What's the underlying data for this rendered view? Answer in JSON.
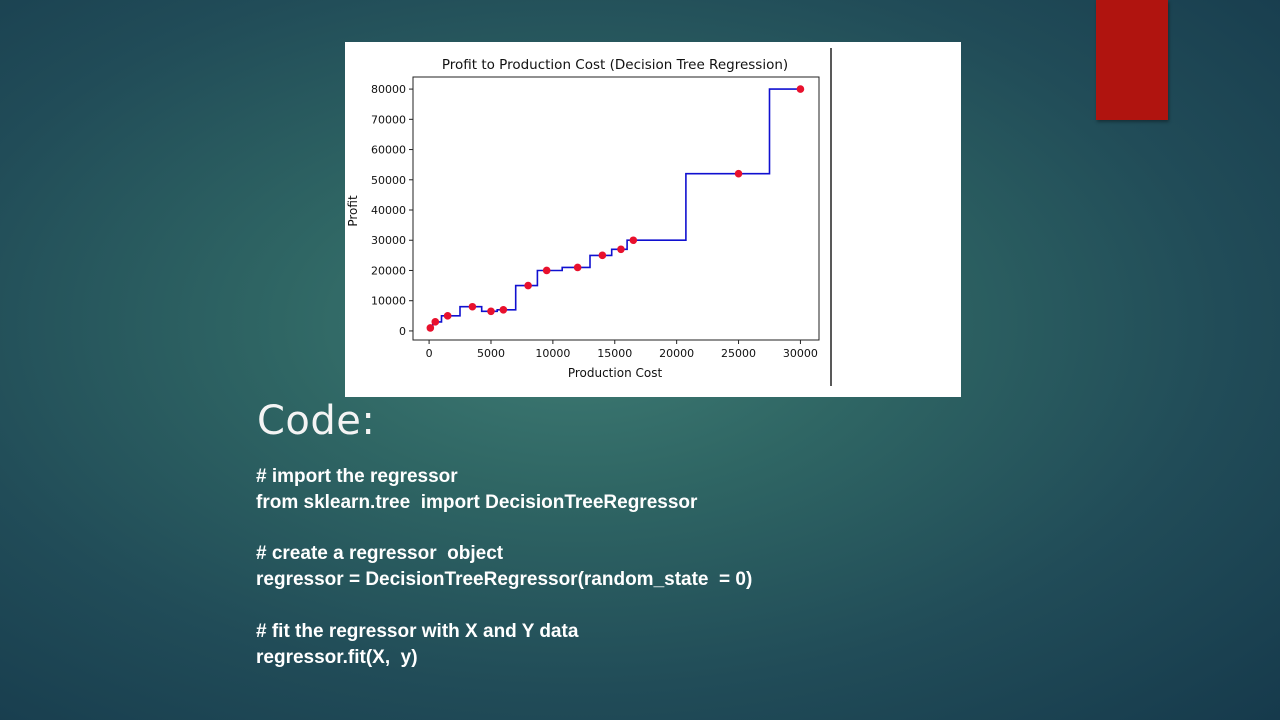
{
  "slide": {
    "heading": "Code:",
    "code_lines": [
      "# import the regressor",
      "from sklearn.tree  import DecisionTreeRegressor",
      "",
      "# create a regressor  object",
      "regressor = DecisionTreeRegressor(random_state  = 0)",
      "",
      "# fit the regressor with X and Y data",
      "regressor.fit(X,  y)"
    ],
    "colors": {
      "accent_tab": "#b0140f",
      "background": "#2f6664"
    }
  },
  "chart_data": {
    "type": "scatter",
    "title": "Profit to Production Cost (Decision Tree Regression)",
    "xlabel": "Production Cost",
    "ylabel": "Profit",
    "xlim": [
      -1300,
      31500
    ],
    "ylim": [
      -3000,
      84000
    ],
    "xticks": [
      0,
      5000,
      10000,
      15000,
      20000,
      25000,
      30000
    ],
    "yticks": [
      0,
      10000,
      20000,
      30000,
      40000,
      50000,
      60000,
      70000,
      80000
    ],
    "grid": false,
    "series": [
      {
        "kind": "points",
        "color": "#e8112d",
        "points": [
          [
            100,
            1000
          ],
          [
            500,
            3000
          ],
          [
            1500,
            5000
          ],
          [
            3500,
            8000
          ],
          [
            5000,
            6500
          ],
          [
            6000,
            7000
          ],
          [
            8000,
            15000
          ],
          [
            9500,
            20000
          ],
          [
            12000,
            21000
          ],
          [
            14000,
            25000
          ],
          [
            15500,
            27000
          ],
          [
            16500,
            30000
          ],
          [
            25000,
            52000
          ],
          [
            30000,
            80000
          ]
        ]
      },
      {
        "kind": "step-line",
        "color": "#1010d0",
        "points": [
          [
            0,
            1000
          ],
          [
            300,
            1000
          ],
          [
            300,
            3000
          ],
          [
            1000,
            3000
          ],
          [
            1000,
            5000
          ],
          [
            2500,
            5000
          ],
          [
            2500,
            8000
          ],
          [
            4250,
            8000
          ],
          [
            4250,
            6500
          ],
          [
            5500,
            6500
          ],
          [
            5500,
            7000
          ],
          [
            7000,
            7000
          ],
          [
            7000,
            15000
          ],
          [
            8750,
            15000
          ],
          [
            8750,
            20000
          ],
          [
            10750,
            20000
          ],
          [
            10750,
            21000
          ],
          [
            13000,
            21000
          ],
          [
            13000,
            25000
          ],
          [
            14750,
            25000
          ],
          [
            14750,
            27000
          ],
          [
            16000,
            27000
          ],
          [
            16000,
            30000
          ],
          [
            20750,
            30000
          ],
          [
            20750,
            52000
          ],
          [
            27500,
            52000
          ],
          [
            27500,
            80000
          ],
          [
            30000,
            80000
          ]
        ]
      }
    ]
  }
}
